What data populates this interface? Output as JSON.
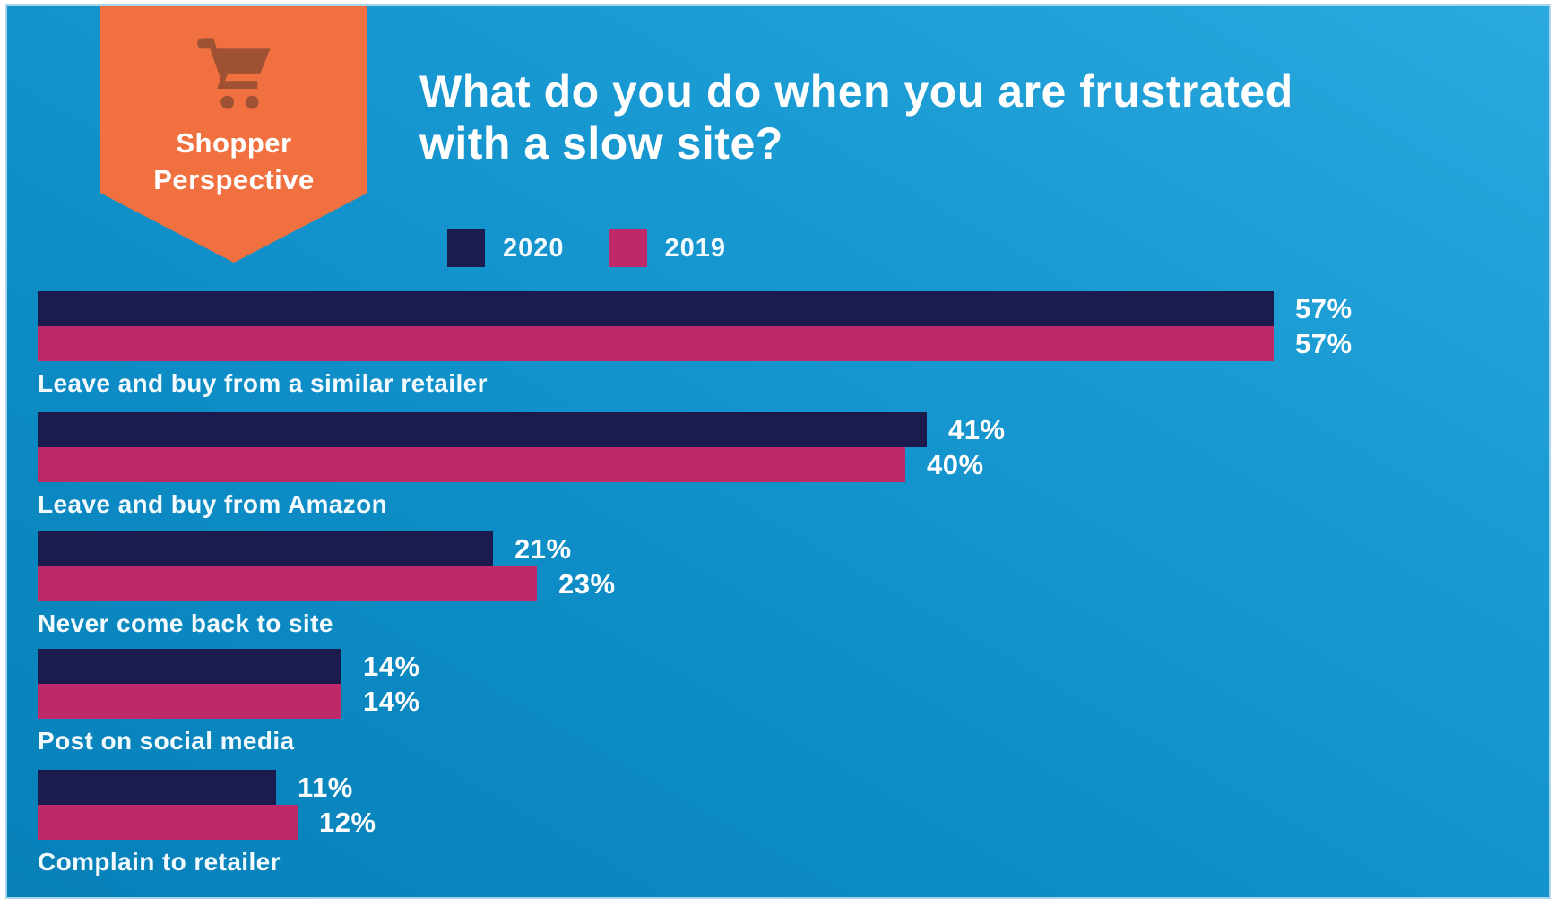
{
  "banner": {
    "icon": "shopping-cart-icon",
    "label_line1": "Shopper",
    "label_line2": "Perspective",
    "bg_color": "#f0713f",
    "icon_color": "#9e5233"
  },
  "title": {
    "line1": "What do you do when you are frustrated",
    "line2": "with a slow site?"
  },
  "legend": {
    "items": [
      {
        "label": "2020",
        "color": "#1b1b4e"
      },
      {
        "label": "2019",
        "color": "#be2a68"
      }
    ]
  },
  "colors": {
    "background_gradient_start": "#0780b8",
    "background_gradient_end": "#2aa9de",
    "series_2020": "#1b1b4e",
    "series_2019": "#be2a68",
    "banner_orange": "#f0713f",
    "text_white": "#ffffff"
  },
  "chart_data": {
    "type": "bar",
    "orientation": "horizontal",
    "title": "What do you do when you are frustrated with a slow site?",
    "categories": [
      "Leave and buy from a similar retailer",
      "Leave and buy from Amazon",
      "Never come back to site",
      "Post on social media",
      "Complain to retailer"
    ],
    "series": [
      {
        "name": "2020",
        "color": "#1b1b4e",
        "values": [
          57,
          41,
          21,
          14,
          11
        ]
      },
      {
        "name": "2019",
        "color": "#be2a68",
        "values": [
          57,
          40,
          23,
          14,
          12
        ]
      }
    ],
    "value_suffix": "%",
    "xlim": [
      0,
      60
    ],
    "grid": false,
    "legend_position": "top",
    "value_labels": "outside-end"
  }
}
